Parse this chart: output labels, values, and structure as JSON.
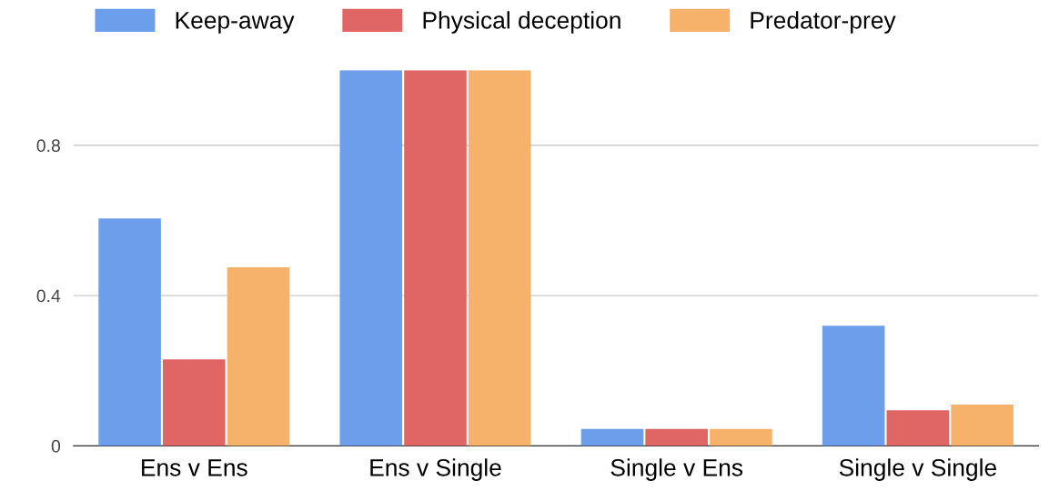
{
  "chart_data": {
    "type": "bar",
    "categories": [
      "Ens v Ens",
      "Ens v Single",
      "Single v Ens",
      "Single v Single"
    ],
    "series": [
      {
        "name": "Keep-away",
        "color": "#6d9eeb",
        "values": [
          0.605,
          1.0,
          0.045,
          0.32
        ]
      },
      {
        "name": "Physical deception",
        "color": "#e06666",
        "values": [
          0.23,
          1.0,
          0.045,
          0.095
        ]
      },
      {
        "name": "Predator-prey",
        "color": "#f6b26b",
        "values": [
          0.475,
          1.0,
          0.045,
          0.11
        ]
      }
    ],
    "ylim": [
      0,
      1.0
    ],
    "yticks": [
      0,
      0.4,
      0.8
    ],
    "grid": "y",
    "legend": "top left"
  }
}
